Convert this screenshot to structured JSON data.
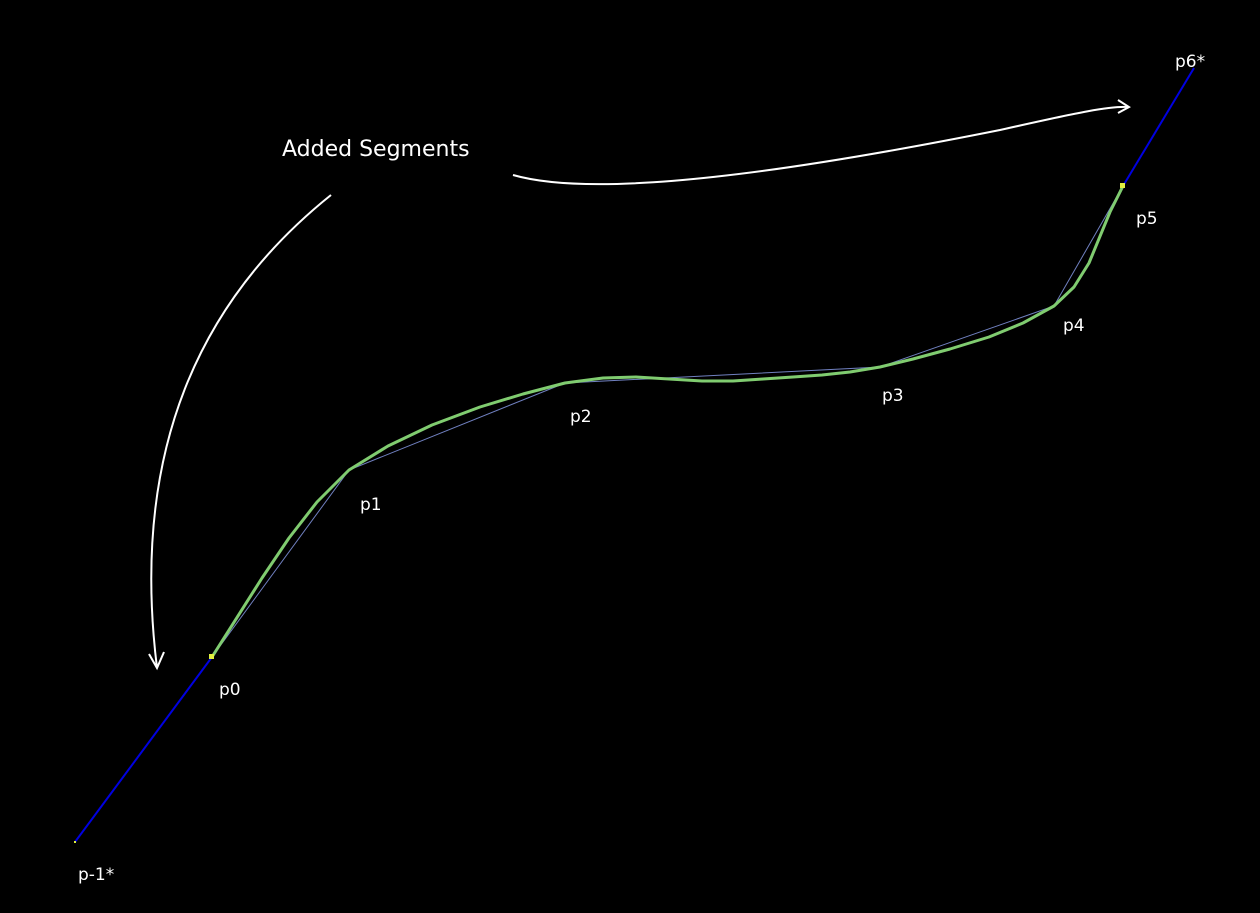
{
  "annotation": "Added Segments",
  "points": [
    "p-1*",
    "p0",
    "p1",
    "p2",
    "p3",
    "p4",
    "p5",
    "p6*"
  ]
}
